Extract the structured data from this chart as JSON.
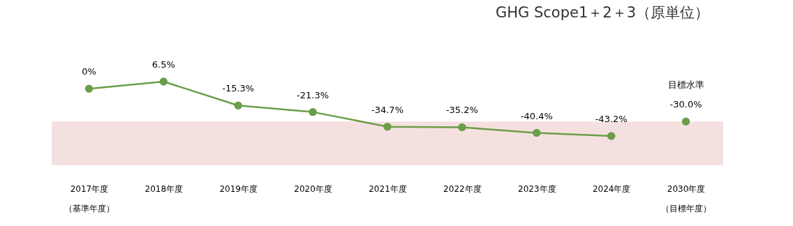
{
  "chart_data": {
    "type": "line",
    "title": "GHG  Scope1＋2＋3（原単位）",
    "categories": [
      "2017年度（基準年度）",
      "2018年度",
      "2019年度",
      "2020年度",
      "2021年度",
      "2022年度",
      "2023年度",
      "2024年度",
      "2030年度（目標年度）"
    ],
    "series": [
      {
        "type": "line",
        "color": "#6a9e48",
        "values": [
          0,
          6.5,
          -15.3,
          -21.3,
          -34.7,
          -35.2,
          -40.4,
          -43.2,
          null
        ],
        "value_labels": [
          "0%",
          "6.5%",
          "-15.3%",
          "-21.3%",
          "-34.7%",
          "-35.2%",
          "-40.4%",
          "-43.2%",
          null
        ]
      },
      {
        "type": "scatter",
        "name": "目標水準",
        "color": "#6a9e48",
        "values": [
          null,
          null,
          null,
          null,
          null,
          null,
          null,
          null,
          -30.0
        ],
        "value_labels": [
          null,
          null,
          null,
          null,
          null,
          null,
          null,
          null,
          "-30.0%"
        ]
      }
    ],
    "tick_labels": "x",
    "grid": false,
    "legend": false,
    "marker": "circle",
    "bands": [
      {
        "axis": "y",
        "from": -30,
        "to": -70,
        "color": "#f4e1df"
      }
    ]
  }
}
